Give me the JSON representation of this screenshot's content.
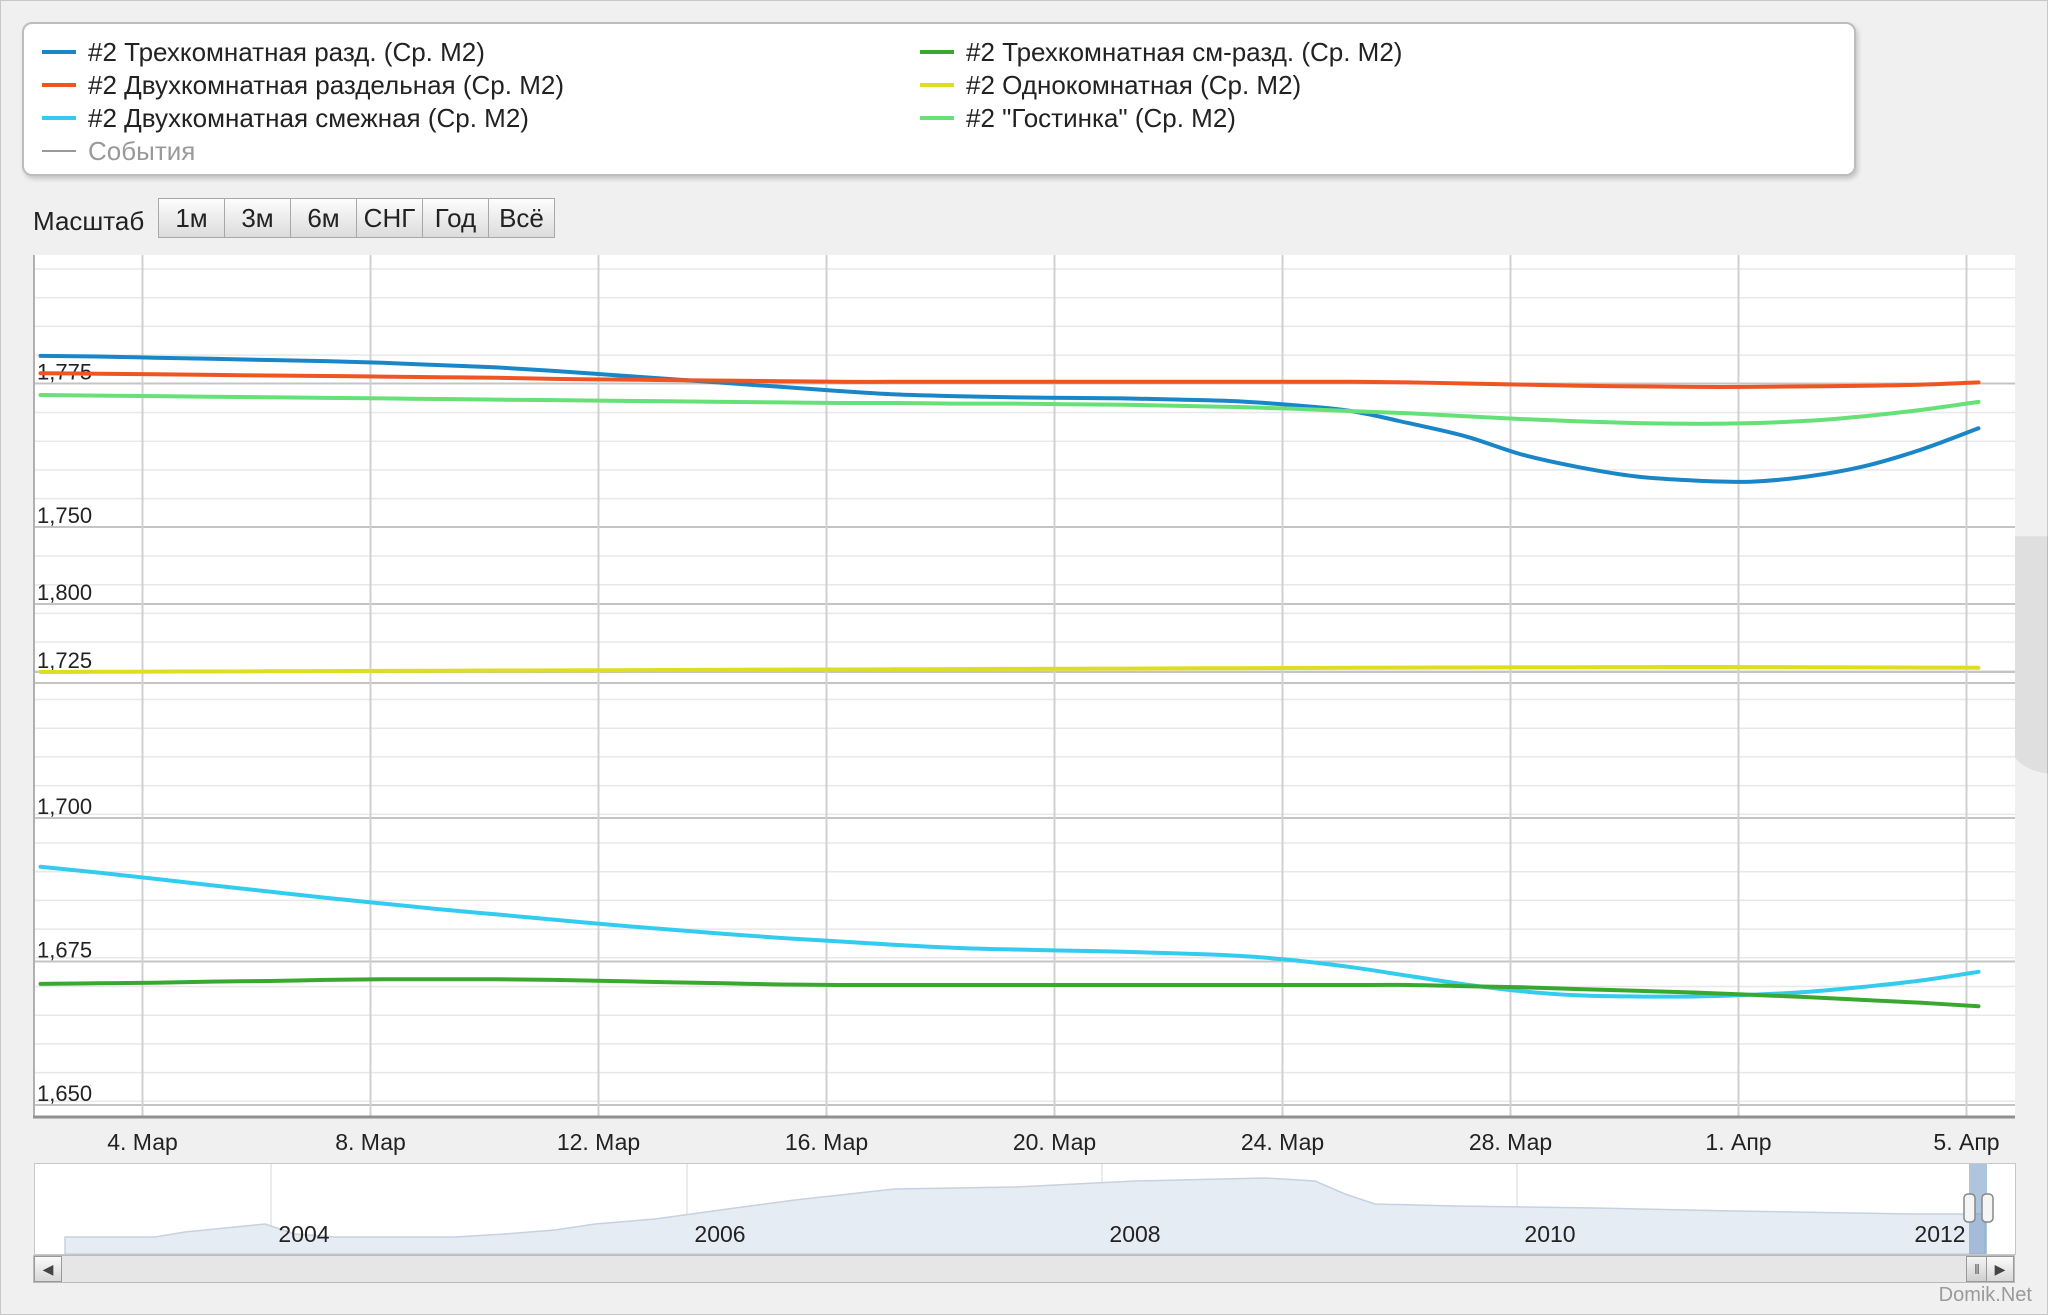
{
  "legend": {
    "items": [
      {
        "label": "#2 Трехкомнатная разд. (Ср. М2)",
        "color": "#1a86c8"
      },
      {
        "label": "#2 Трехкомнатная см-разд. (Ср. М2)",
        "color": "#3aa830"
      },
      {
        "label": "#2 Двухкомнатная раздельная (Ср. М2)",
        "color": "#ee5522"
      },
      {
        "label": "#2 Однокомнатная (Ср. М2)",
        "color": "#dddd22"
      },
      {
        "label": "#2 Двухкомнатная смежная (Ср. М2)",
        "color": "#33ccee"
      },
      {
        "label": "#2 \"Гостинка\" (Ср. М2)",
        "color": "#66e077"
      },
      {
        "label": "События",
        "color": "#999999",
        "muted": true
      }
    ]
  },
  "scale": {
    "label": "Масштаб",
    "buttons": [
      "1м",
      "3м",
      "6м",
      "СНГ",
      "Год",
      "Всё"
    ]
  },
  "watermark": "Domik.net",
  "credit": "Domik.Net",
  "chart_data": {
    "type": "line",
    "x": [
      "3. Мар",
      "4. Мар",
      "5. Мар",
      "6. Мар",
      "7. Мар",
      "8. Мар",
      "9. Мар",
      "10. Мар",
      "11. Мар",
      "12. Мар",
      "13. Мар",
      "14. Мар",
      "15. Мар",
      "16. Мар",
      "17. Мар",
      "18. Мар",
      "19. Мар",
      "20. Мар",
      "21. Мар",
      "22. Мар",
      "23. Мар",
      "24. Мар",
      "25. Мар",
      "26. Мар",
      "27. Мар",
      "28. Мар",
      "29. Мар",
      "30. Мар",
      "31. Мар",
      "1. Апр",
      "2. Апр",
      "3. Апр",
      "4. Апр",
      "5. Апр",
      "6. Апр"
    ],
    "x_tick_labels": [
      "4. Мар",
      "8. Мар",
      "12. Мар",
      "16. Мар",
      "20. Мар",
      "24. Мар",
      "28. Мар",
      "1. Апр",
      "5. Апр"
    ],
    "panels": [
      {
        "name": "upper",
        "ylim": [
          1725,
          1795
        ],
        "yticks": [
          1750,
          1775
        ],
        "series": [
          {
            "name": "#2 Трехкомнатная разд. (Ср. М2)",
            "color": "#1a86c8",
            "values": [
              1779.8,
              1779.7,
              1779.5,
              1779.3,
              1779.1,
              1778.9,
              1778.6,
              1778.2,
              1777.8,
              1777.2,
              1776.5,
              1775.8,
              1775.1,
              1774.4,
              1773.7,
              1773.1,
              1772.8,
              1772.6,
              1772.5,
              1772.4,
              1772.2,
              1771.9,
              1771.2,
              1770.2,
              1768.1,
              1765.8,
              1762.6,
              1760.4,
              1758.8,
              1758.1,
              1757.9,
              1758.8,
              1760.6,
              1763.5,
              1767.2
            ]
          },
          {
            "name": "#2 Двухкомнатная раздельная (Ср. М2)",
            "color": "#ee5522",
            "values": [
              1776.8,
              1776.7,
              1776.6,
              1776.5,
              1776.4,
              1776.3,
              1776.2,
              1776.1,
              1776.0,
              1775.8,
              1775.7,
              1775.6,
              1775.5,
              1775.4,
              1775.3,
              1775.3,
              1775.3,
              1775.3,
              1775.3,
              1775.3,
              1775.3,
              1775.3,
              1775.3,
              1775.3,
              1775.2,
              1775.0,
              1774.8,
              1774.6,
              1774.5,
              1774.4,
              1774.4,
              1774.5,
              1774.6,
              1774.8,
              1775.2
            ]
          },
          {
            "name": "#2 \"Гостинка\" (Ср. М2)",
            "color": "#66e077",
            "values": [
              1773.0,
              1772.9,
              1772.8,
              1772.7,
              1772.6,
              1772.5,
              1772.4,
              1772.3,
              1772.2,
              1772.1,
              1772.0,
              1771.9,
              1771.8,
              1771.7,
              1771.6,
              1771.6,
              1771.5,
              1771.5,
              1771.4,
              1771.3,
              1771.1,
              1770.9,
              1770.6,
              1770.2,
              1769.8,
              1769.3,
              1768.8,
              1768.4,
              1768.1,
              1768.0,
              1768.1,
              1768.5,
              1769.3,
              1770.4,
              1771.8
            ]
          }
        ]
      },
      {
        "name": "middle",
        "ylim": [
          1725,
          1800
        ],
        "yticks": [
          1725,
          1800
        ],
        "series": [
          {
            "name": "#2 Однокомнатная (Ср. М2)",
            "color": "#dddd22",
            "values": [
              1725.0,
              1725.2,
              1725.4,
              1725.6,
              1725.8,
              1726.0,
              1726.2,
              1726.4,
              1726.6,
              1726.8,
              1727.0,
              1727.2,
              1727.4,
              1727.6,
              1727.8,
              1728.0,
              1728.2,
              1728.4,
              1728.6,
              1728.8,
              1729.0,
              1729.2,
              1729.4,
              1729.6,
              1729.8,
              1730.0,
              1730.2,
              1730.3,
              1730.4,
              1730.5,
              1730.4,
              1730.3,
              1730.1,
              1729.9,
              1729.6
            ]
          }
        ]
      },
      {
        "name": "lower",
        "ylim": [
          1650,
          1710
        ],
        "yticks": [
          1650,
          1675,
          1700
        ],
        "series": [
          {
            "name": "#2 Двухкомнатная смежная (Ср. М2)",
            "color": "#33ccee",
            "values": [
              1691.5,
              1690.5,
              1689.4,
              1688.3,
              1687.2,
              1686.1,
              1685.1,
              1684.1,
              1683.2,
              1682.3,
              1681.4,
              1680.6,
              1679.8,
              1679.1,
              1678.5,
              1677.9,
              1677.4,
              1677.1,
              1676.9,
              1676.7,
              1676.4,
              1676.0,
              1675.2,
              1674.0,
              1672.5,
              1671.0,
              1669.8,
              1669.1,
              1668.9,
              1668.9,
              1669.2,
              1669.7,
              1670.6,
              1671.7,
              1673.2
            ]
          },
          {
            "name": "#2 Трехкомнатная см-разд. (Ср. М2)",
            "color": "#3aa830",
            "values": [
              1671.1,
              1671.2,
              1671.3,
              1671.5,
              1671.6,
              1671.8,
              1671.9,
              1671.9,
              1671.9,
              1671.8,
              1671.6,
              1671.4,
              1671.2,
              1671.0,
              1670.9,
              1670.9,
              1670.9,
              1670.9,
              1670.9,
              1670.9,
              1670.9,
              1670.9,
              1670.9,
              1670.9,
              1670.9,
              1670.7,
              1670.5,
              1670.2,
              1669.9,
              1669.6,
              1669.2,
              1668.8,
              1668.3,
              1667.8,
              1667.2
            ]
          }
        ]
      }
    ],
    "navigator": {
      "x_tick_labels": [
        "2004",
        "2006",
        "2008",
        "2010",
        "2012"
      ]
    },
    "grid": true,
    "legend_position": "top"
  }
}
